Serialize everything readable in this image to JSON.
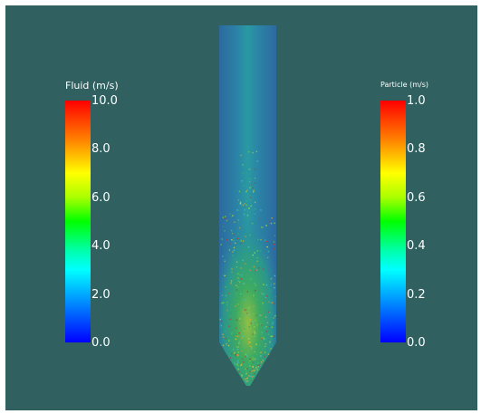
{
  "fluid_legend": {
    "title": "Fluid (m/s)",
    "ticks": [
      "10.0",
      "8.0",
      "6.0",
      "4.0",
      "2.0",
      "0.0"
    ]
  },
  "particle_legend": {
    "title": "Particle (m/s)",
    "ticks": [
      "1.0",
      "0.8",
      "0.6",
      "0.4",
      "0.2",
      "0.0"
    ]
  },
  "colors": {
    "background": "#30605f",
    "column_fluid": "#2e7f9f",
    "column_core": "#2a9aa0"
  }
}
